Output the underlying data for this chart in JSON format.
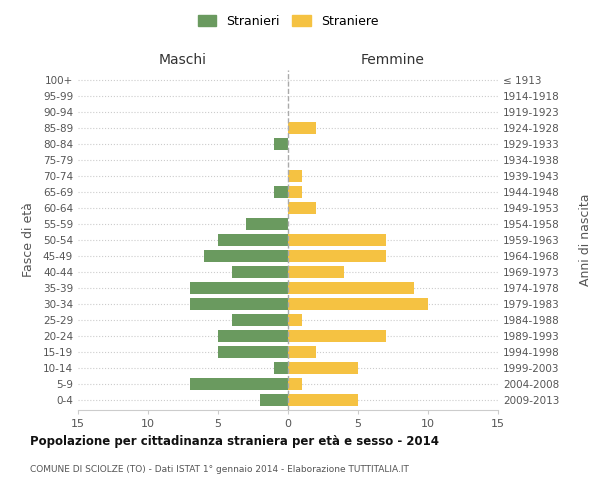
{
  "age_groups": [
    "0-4",
    "5-9",
    "10-14",
    "15-19",
    "20-24",
    "25-29",
    "30-34",
    "35-39",
    "40-44",
    "45-49",
    "50-54",
    "55-59",
    "60-64",
    "65-69",
    "70-74",
    "75-79",
    "80-84",
    "85-89",
    "90-94",
    "95-99",
    "100+"
  ],
  "birth_years": [
    "2009-2013",
    "2004-2008",
    "1999-2003",
    "1994-1998",
    "1989-1993",
    "1984-1988",
    "1979-1983",
    "1974-1978",
    "1969-1973",
    "1964-1968",
    "1959-1963",
    "1954-1958",
    "1949-1953",
    "1944-1948",
    "1939-1943",
    "1934-1938",
    "1929-1933",
    "1924-1928",
    "1919-1923",
    "1914-1918",
    "≤ 1913"
  ],
  "males": [
    2,
    7,
    1,
    5,
    5,
    4,
    7,
    7,
    4,
    6,
    5,
    3,
    0,
    1,
    0,
    0,
    1,
    0,
    0,
    0,
    0
  ],
  "females": [
    5,
    1,
    5,
    2,
    7,
    1,
    10,
    9,
    4,
    7,
    7,
    0,
    2,
    1,
    1,
    0,
    0,
    2,
    0,
    0,
    0
  ],
  "male_color": "#6a9a5f",
  "female_color": "#f5c242",
  "title": "Popolazione per cittadinanza straniera per età e sesso - 2014",
  "subtitle": "COMUNE DI SCIOLZE (TO) - Dati ISTAT 1° gennaio 2014 - Elaborazione TUTTITALIA.IT",
  "ylabel_left": "Fasce di età",
  "ylabel_right": "Anni di nascita",
  "xlabel_left": "Maschi",
  "xlabel_right": "Femmine",
  "legend_stranieri": "Stranieri",
  "legend_straniere": "Straniere",
  "xlim": 15,
  "background_color": "#ffffff",
  "grid_color": "#cccccc",
  "bar_height": 0.75
}
